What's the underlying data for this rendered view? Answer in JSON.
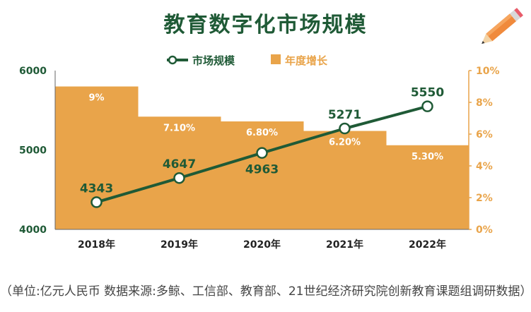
{
  "title": "教育数字化市场规模",
  "footnote": "（单位:亿元人民币  数据来源:多鲸、工信部、教育部、21世纪经济研究院创新教育课题组调研数据）",
  "legend": {
    "line": "市场规模",
    "area": "年度增长"
  },
  "colors": {
    "line": "#1f5a36",
    "area": "#e9a44a",
    "bar_label": "#ffffff",
    "left_axis": "#1f5a36",
    "right_axis": "#e9a44a",
    "title": "#1f5a36"
  },
  "chart_data": {
    "type": "line",
    "categories": [
      "2018年",
      "2019年",
      "2020年",
      "2021年",
      "2022年"
    ],
    "series": [
      {
        "name": "市场规模",
        "type": "line",
        "axis": "left",
        "values": [
          4343,
          4647,
          4963,
          5271,
          5550
        ]
      },
      {
        "name": "年度增长",
        "type": "step-area",
        "axis": "right",
        "values": [
          9,
          7.1,
          6.8,
          6.2,
          5.3
        ],
        "labels": [
          "9%",
          "7.10%",
          "6.80%",
          "6.20%",
          "5.30%"
        ]
      }
    ],
    "y_left": {
      "min": 4000,
      "max": 6000,
      "ticks": [
        "4000",
        "5000",
        "6000"
      ]
    },
    "y_right": {
      "min": 0,
      "max": 10,
      "ticks": [
        "0%",
        "2%",
        "4%",
        "6%",
        "8%",
        "10%"
      ]
    },
    "grid": false,
    "legend_position": "top-center"
  }
}
